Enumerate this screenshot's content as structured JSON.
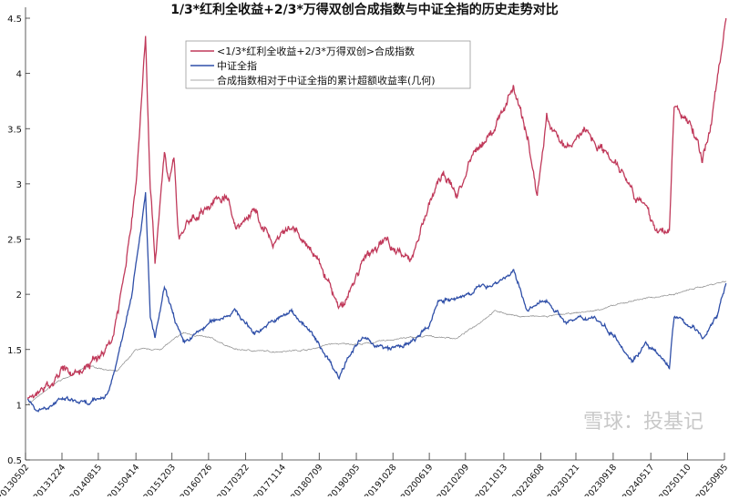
{
  "chart_data": {
    "type": "line",
    "title": "1/3*红利全收益+2/3*万得双创合成指数与中证全指的历史走势对比",
    "xlabel": "",
    "ylabel": "",
    "ylim": [
      0.5,
      4.5
    ],
    "yticks": [
      "0.5",
      "1",
      "1.5",
      "2",
      "2.5",
      "3",
      "3.5",
      "4",
      "4.5"
    ],
    "xticks": [
      "20130502",
      "20131224",
      "20140815",
      "20150414",
      "20151203",
      "20160726",
      "20170322",
      "20171114",
      "20180709",
      "20190305",
      "20191028",
      "20200619",
      "20210209",
      "20211013",
      "20220608",
      "20230121",
      "20230918",
      "20240517",
      "20250110",
      "20250905"
    ],
    "grid": false,
    "legend_position": "top-center",
    "series": [
      {
        "name": "<1/3*红利全收益+2/3*万得双创>合成指数",
        "color": "#c0395a",
        "points": [
          [
            "2013-05",
            1.05
          ],
          [
            "2013-09",
            1.15
          ],
          [
            "2013-12",
            1.3
          ],
          [
            "2014-04",
            1.3
          ],
          [
            "2014-08",
            1.42
          ],
          [
            "2014-11",
            1.6
          ],
          [
            "2015-02",
            2.3
          ],
          [
            "2015-04",
            3.0
          ],
          [
            "2015-06",
            4.35
          ],
          [
            "2015-07",
            3.0
          ],
          [
            "2015-08",
            2.3
          ],
          [
            "2015-10",
            3.3
          ],
          [
            "2015-11",
            3.0
          ],
          [
            "2015-12",
            3.25
          ],
          [
            "2016-01",
            2.5
          ],
          [
            "2016-04",
            2.7
          ],
          [
            "2016-11",
            2.9
          ],
          [
            "2017-01",
            2.6
          ],
          [
            "2017-05",
            2.75
          ],
          [
            "2017-09",
            2.45
          ],
          [
            "2018-01",
            2.6
          ],
          [
            "2018-05",
            2.4
          ],
          [
            "2018-09",
            2.1
          ],
          [
            "2018-11",
            1.85
          ],
          [
            "2019-01",
            2.0
          ],
          [
            "2019-04",
            2.3
          ],
          [
            "2019-09",
            2.5
          ],
          [
            "2020-02",
            2.3
          ],
          [
            "2020-06",
            2.8
          ],
          [
            "2020-09",
            3.1
          ],
          [
            "2020-12",
            2.9
          ],
          [
            "2021-04",
            3.3
          ],
          [
            "2021-08",
            3.5
          ],
          [
            "2021-12",
            3.9
          ],
          [
            "2022-03",
            3.4
          ],
          [
            "2022-05",
            2.9
          ],
          [
            "2022-07",
            3.6
          ],
          [
            "2022-11",
            3.3
          ],
          [
            "2023-03",
            3.5
          ],
          [
            "2023-07",
            3.3
          ],
          [
            "2023-10",
            3.2
          ],
          [
            "2024-02",
            2.9
          ],
          [
            "2024-07",
            2.55
          ],
          [
            "2024-09",
            2.6
          ],
          [
            "2024-10",
            3.7
          ],
          [
            "2025-02",
            3.5
          ],
          [
            "2025-04",
            3.2
          ],
          [
            "2025-06",
            3.6
          ],
          [
            "2025-09",
            4.5
          ]
        ]
      },
      {
        "name": "中证全指",
        "color": "#2f4fa8",
        "points": [
          [
            "2013-05",
            1.05
          ],
          [
            "2013-07",
            0.95
          ],
          [
            "2014-01",
            1.05
          ],
          [
            "2014-06",
            1.0
          ],
          [
            "2014-10",
            1.1
          ],
          [
            "2014-12",
            1.4
          ],
          [
            "2015-03",
            2.0
          ],
          [
            "2015-06",
            2.9
          ],
          [
            "2015-07",
            1.8
          ],
          [
            "2015-08",
            1.6
          ],
          [
            "2015-10",
            2.05
          ],
          [
            "2015-12",
            1.8
          ],
          [
            "2016-02",
            1.55
          ],
          [
            "2016-08",
            1.75
          ],
          [
            "2017-01",
            1.85
          ],
          [
            "2017-05",
            1.65
          ],
          [
            "2017-09",
            1.75
          ],
          [
            "2018-01",
            1.85
          ],
          [
            "2018-05",
            1.65
          ],
          [
            "2018-09",
            1.4
          ],
          [
            "2018-11",
            1.25
          ],
          [
            "2019-01",
            1.45
          ],
          [
            "2019-04",
            1.6
          ],
          [
            "2019-09",
            1.5
          ],
          [
            "2020-02",
            1.55
          ],
          [
            "2020-06",
            1.7
          ],
          [
            "2020-08",
            1.95
          ],
          [
            "2020-12",
            1.95
          ],
          [
            "2021-04",
            2.05
          ],
          [
            "2021-08",
            2.1
          ],
          [
            "2021-12",
            2.2
          ],
          [
            "2022-03",
            1.85
          ],
          [
            "2022-07",
            1.95
          ],
          [
            "2022-11",
            1.75
          ],
          [
            "2023-05",
            1.8
          ],
          [
            "2023-10",
            1.6
          ],
          [
            "2024-01",
            1.4
          ],
          [
            "2024-04",
            1.55
          ],
          [
            "2024-09",
            1.35
          ],
          [
            "2024-10",
            1.8
          ],
          [
            "2025-02",
            1.7
          ],
          [
            "2025-04",
            1.6
          ],
          [
            "2025-07",
            1.8
          ],
          [
            "2025-09",
            2.1
          ]
        ]
      },
      {
        "name": "合成指数相对于中证全指的累计超额收益率(几何)",
        "color": "#8a8a8a",
        "points": [
          [
            "2013-05",
            1.0
          ],
          [
            "2013-11",
            1.2
          ],
          [
            "2014-06",
            1.35
          ],
          [
            "2014-12",
            1.3
          ],
          [
            "2015-04",
            1.5
          ],
          [
            "2015-09",
            1.5
          ],
          [
            "2016-02",
            1.65
          ],
          [
            "2016-08",
            1.6
          ],
          [
            "2017-01",
            1.5
          ],
          [
            "2017-09",
            1.48
          ],
          [
            "2018-05",
            1.5
          ],
          [
            "2018-09",
            1.55
          ],
          [
            "2019-04",
            1.55
          ],
          [
            "2019-12",
            1.6
          ],
          [
            "2020-06",
            1.62
          ],
          [
            "2020-12",
            1.6
          ],
          [
            "2021-04",
            1.72
          ],
          [
            "2021-08",
            1.85
          ],
          [
            "2022-01",
            1.8
          ],
          [
            "2022-07",
            1.8
          ],
          [
            "2023-05",
            1.85
          ],
          [
            "2024-02",
            1.95
          ],
          [
            "2024-10",
            2.0
          ],
          [
            "2025-02",
            2.05
          ],
          [
            "2025-09",
            2.12
          ]
        ]
      }
    ]
  },
  "watermark": "雪球：投基记"
}
